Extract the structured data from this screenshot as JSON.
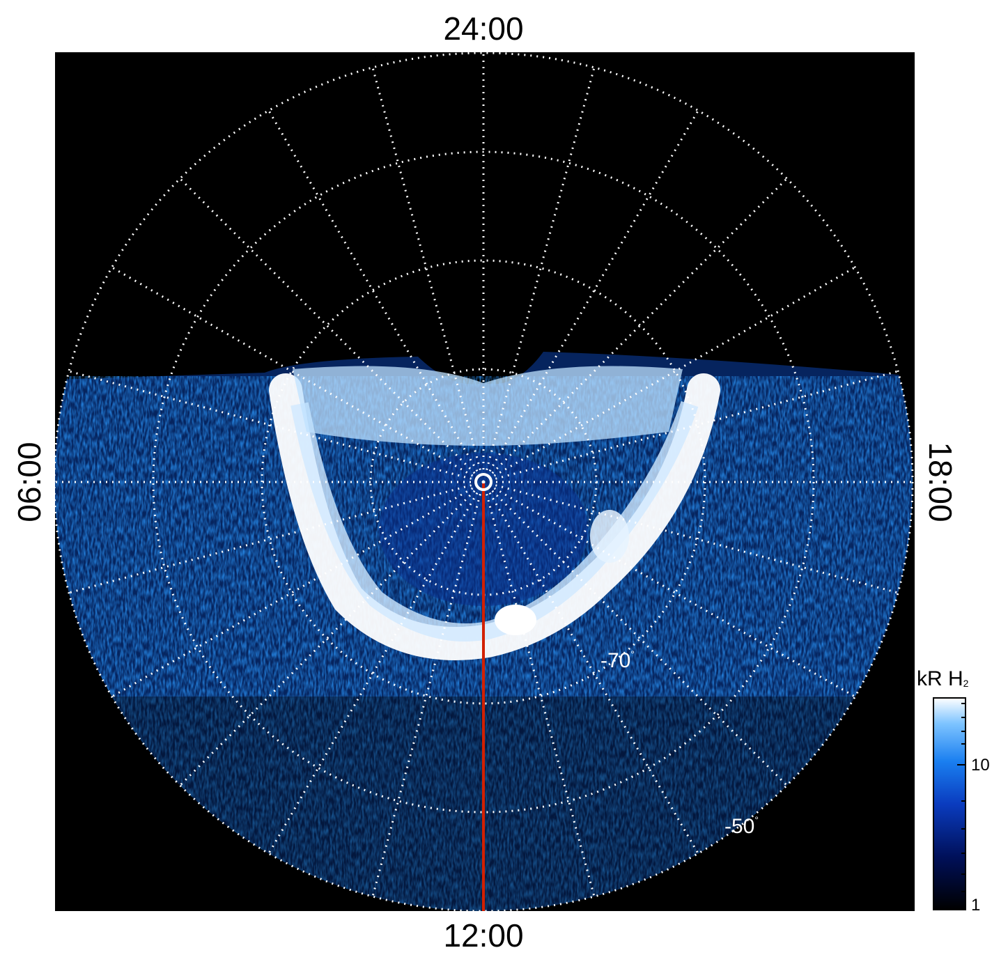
{
  "local_time_labels": {
    "top": "24:00",
    "bottom": "12:00",
    "left": "06:00",
    "right": "18:00"
  },
  "latitude_labels": [
    {
      "value": "-70",
      "unit": "°"
    },
    {
      "value": "-50",
      "unit": "°"
    }
  ],
  "colorbar": {
    "title": "kR H",
    "title_subscript": "2",
    "ticks": [
      "10",
      "1"
    ],
    "scale": "log",
    "colors": [
      "#000000",
      "#00105a",
      "#0a3cbf",
      "#1a7ff0",
      "#7ec4ff",
      "#ffffff"
    ]
  },
  "colors": {
    "background": "#000000",
    "grid": "#ffffff",
    "meridian_line": "#d22000",
    "frame_outside": "#ffffff"
  }
}
